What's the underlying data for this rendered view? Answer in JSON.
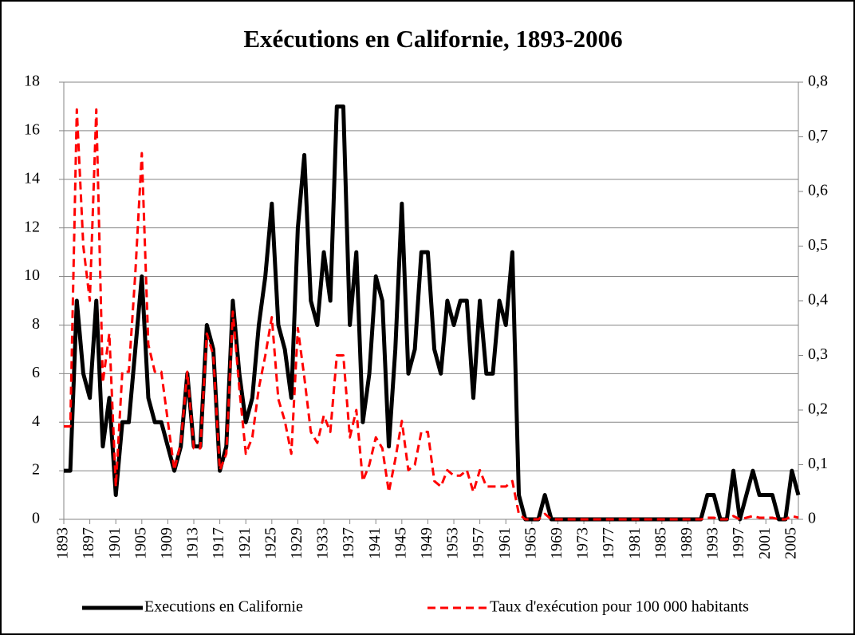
{
  "chart_data": {
    "type": "line",
    "title": "Exécutions en Californie, 1893-2006",
    "x": [
      1893,
      1894,
      1895,
      1896,
      1897,
      1898,
      1899,
      1900,
      1901,
      1902,
      1903,
      1904,
      1905,
      1906,
      1907,
      1908,
      1909,
      1910,
      1911,
      1912,
      1913,
      1914,
      1915,
      1916,
      1917,
      1918,
      1919,
      1920,
      1921,
      1922,
      1923,
      1924,
      1925,
      1926,
      1927,
      1928,
      1929,
      1930,
      1931,
      1932,
      1933,
      1934,
      1935,
      1936,
      1937,
      1938,
      1939,
      1940,
      1941,
      1942,
      1943,
      1944,
      1945,
      1946,
      1947,
      1948,
      1949,
      1950,
      1951,
      1952,
      1953,
      1954,
      1955,
      1956,
      1957,
      1958,
      1959,
      1960,
      1961,
      1962,
      1963,
      1964,
      1965,
      1966,
      1967,
      1968,
      1969,
      1970,
      1971,
      1972,
      1973,
      1974,
      1975,
      1976,
      1977,
      1978,
      1979,
      1980,
      1981,
      1982,
      1983,
      1984,
      1985,
      1986,
      1987,
      1988,
      1989,
      1990,
      1991,
      1992,
      1993,
      1994,
      1995,
      1996,
      1997,
      1998,
      1999,
      2000,
      2001,
      2002,
      2003,
      2004,
      2005,
      2006
    ],
    "series": [
      {
        "name": "Executions en Californie",
        "color": "#000000",
        "values": [
          2,
          2,
          9,
          6,
          5,
          9,
          3,
          5,
          1,
          4,
          4,
          7,
          10,
          5,
          4,
          4,
          3,
          2,
          3,
          6,
          3,
          3,
          8,
          7,
          2,
          3,
          9,
          6,
          4,
          5,
          8,
          10,
          13,
          8,
          7,
          5,
          12,
          15,
          9,
          8,
          11,
          9,
          17,
          17,
          8,
          11,
          4,
          6,
          10,
          9,
          3,
          7,
          13,
          6,
          7,
          11,
          11,
          7,
          6,
          9,
          8,
          9,
          9,
          5,
          9,
          6,
          6,
          9,
          8,
          11,
          1,
          0,
          0,
          0,
          1,
          0,
          0,
          0,
          0,
          0,
          0,
          0,
          0,
          0,
          0,
          0,
          0,
          0,
          0,
          0,
          0,
          0,
          0,
          0,
          0,
          0,
          0,
          0,
          0,
          1,
          1,
          0,
          0,
          2,
          0,
          1,
          2,
          1,
          1,
          1,
          0,
          0,
          2,
          1
        ]
      },
      {
        "name": "Taux d'exécution pour 100 000 habitants",
        "color": "#ff0000",
        "axis": "y2",
        "dashed": true,
        "values": [
          0.17,
          0.17,
          0.75,
          0.5,
          0.4,
          0.75,
          0.25,
          0.34,
          0.06,
          0.27,
          0.27,
          0.45,
          0.67,
          0.32,
          0.27,
          0.27,
          0.18,
          0.09,
          0.14,
          0.27,
          0.13,
          0.13,
          0.34,
          0.3,
          0.09,
          0.12,
          0.38,
          0.24,
          0.12,
          0.15,
          0.24,
          0.3,
          0.37,
          0.22,
          0.18,
          0.12,
          0.35,
          0.26,
          0.16,
          0.14,
          0.19,
          0.16,
          0.3,
          0.3,
          0.15,
          0.2,
          0.07,
          0.1,
          0.15,
          0.13,
          0.05,
          0.11,
          0.18,
          0.09,
          0.1,
          0.16,
          0.16,
          0.07,
          0.06,
          0.09,
          0.08,
          0.08,
          0.09,
          0.05,
          0.09,
          0.06,
          0.06,
          0.06,
          0.06,
          0.07,
          0.01,
          0,
          0,
          0,
          0.01,
          0,
          0,
          0,
          0,
          0,
          0,
          0,
          0,
          0,
          0,
          0,
          0,
          0,
          0,
          0,
          0,
          0,
          0,
          0,
          0,
          0,
          0,
          0,
          0,
          0.003,
          0.003,
          0,
          0,
          0.006,
          0,
          0.003,
          0.006,
          0.003,
          0.003,
          0.003,
          0,
          0,
          0.006,
          0.003
        ]
      }
    ],
    "xlim": [
      1893,
      2006
    ],
    "xticks": [
      1893,
      1897,
      1901,
      1905,
      1909,
      1913,
      1917,
      1921,
      1925,
      1929,
      1933,
      1937,
      1941,
      1945,
      1949,
      1953,
      1957,
      1961,
      1965,
      1969,
      1973,
      1977,
      1981,
      1985,
      1989,
      1993,
      1997,
      2001,
      2005
    ],
    "ylim": [
      0,
      18
    ],
    "yticks": [
      0,
      2,
      4,
      6,
      8,
      10,
      12,
      14,
      16,
      18
    ],
    "y2lim": [
      0,
      0.8
    ],
    "y2ticks": [
      0,
      {
        "value": 0.1,
        "label": "0,1"
      },
      {
        "value": 0.2,
        "label": "0,2"
      },
      {
        "value": 0.3,
        "label": "0,3"
      },
      {
        "value": 0.4,
        "label": "0,4"
      },
      {
        "value": 0.5,
        "label": "0,5"
      },
      {
        "value": 0.6,
        "label": "0,6"
      },
      {
        "value": 0.7,
        "label": "0,7"
      },
      {
        "value": 0.8,
        "label": "0,8"
      }
    ],
    "grid": true,
    "legend": "bottom"
  }
}
